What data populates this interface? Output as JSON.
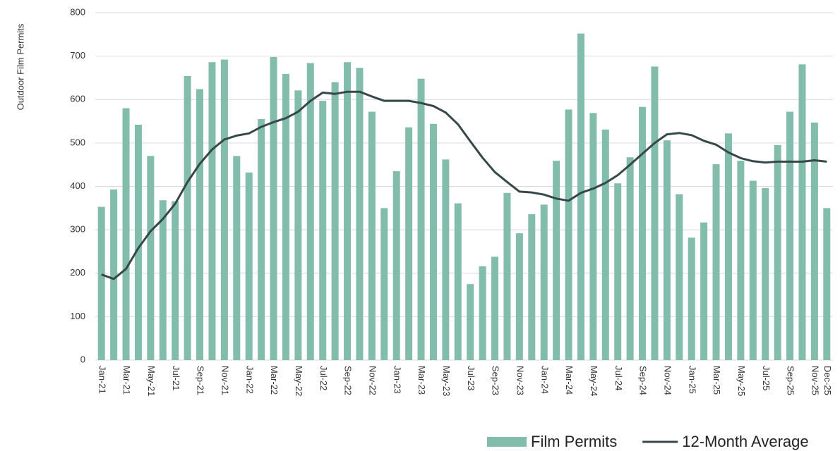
{
  "chart_data": {
    "type": "bar_line",
    "y_axis_label": "Outdoor Film Permits",
    "categories": [
      "Jan-21",
      null,
      "Mar-21",
      null,
      "May-21",
      null,
      "Jul-21",
      null,
      "Sep-21",
      null,
      "Nov-21",
      null,
      "Jan-22",
      null,
      "Mar-22",
      null,
      "May-22",
      null,
      "Jul-22",
      null,
      "Sep-22",
      null,
      "Nov-22",
      null,
      "Jan-23",
      null,
      "Mar-23",
      null,
      "May-23",
      null,
      "Jul-23",
      null,
      "Sep-23",
      null,
      "Nov-23",
      null,
      "Jan-24",
      null,
      "Mar-24",
      null,
      "May-24",
      null,
      "Jul-24",
      null,
      "Sep-24",
      null,
      "Nov-24",
      null,
      "Jan-25",
      null,
      "Mar-25",
      null,
      "May-25",
      null,
      "Jul-25",
      null,
      "Sep-25",
      null,
      "Nov-25",
      "Dec-25"
    ],
    "series": [
      {
        "name": "Film Permits",
        "kind": "bar",
        "color": "#82bcab",
        "values": [
          353,
          393,
          580,
          542,
          470,
          368,
          366,
          654,
          624,
          686,
          692,
          470,
          432,
          555,
          698,
          659,
          621,
          684,
          597,
          640,
          686,
          673,
          572,
          350,
          435,
          536,
          648,
          544,
          462,
          361,
          175,
          216,
          238,
          385,
          292,
          336,
          358,
          459,
          577,
          752,
          569,
          531,
          407,
          467,
          583,
          676,
          506,
          382,
          282,
          317,
          451,
          522,
          459,
          413,
          396,
          495,
          572,
          681,
          547,
          350
        ]
      },
      {
        "name": "12-Month Average",
        "kind": "line",
        "color": "#37474a",
        "values": [
          197,
          187,
          210,
          258,
          297,
          325,
          360,
          410,
          452,
          485,
          508,
          517,
          522,
          537,
          548,
          557,
          572,
          597,
          616,
          613,
          618,
          618,
          607,
          597,
          597,
          597,
          592,
          585,
          570,
          543,
          504,
          466,
          433,
          410,
          388,
          386,
          381,
          372,
          367,
          385,
          395,
          408,
          426,
          450,
          475,
          500,
          520,
          523,
          518,
          505,
          496,
          478,
          465,
          458,
          455,
          457,
          457,
          457,
          460,
          457
        ]
      }
    ],
    "ylim": [
      0,
      800
    ],
    "yticks": [
      0,
      100,
      200,
      300,
      400,
      500,
      600,
      700,
      800
    ],
    "grid": true,
    "legend": "bottom-right"
  }
}
